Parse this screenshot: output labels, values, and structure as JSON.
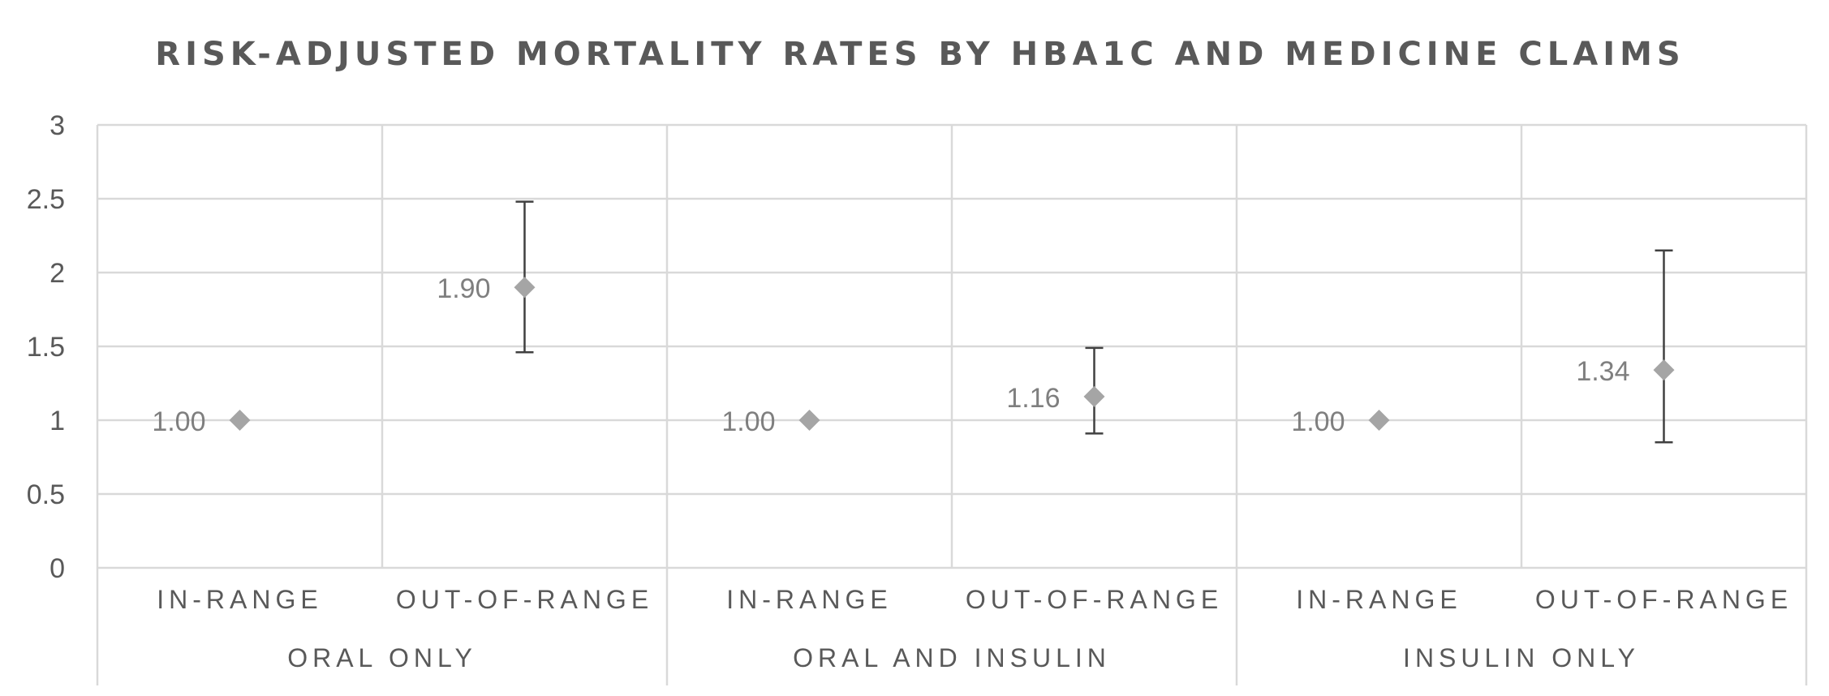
{
  "chart_data": {
    "type": "scatter",
    "title": "RISK-ADJUSTED MORTALITY RATES BY HBA1C AND MEDICINE CLAIMS",
    "ylim": [
      0,
      3
    ],
    "yticks": [
      "0",
      "0.5",
      "1",
      "1.5",
      "2",
      "2.5",
      "3"
    ],
    "ytick_values": [
      0,
      0.5,
      1,
      1.5,
      2,
      2.5,
      3
    ],
    "grid": true,
    "groups": [
      "ORAL ONLY",
      "ORAL AND INSULIN",
      "INSULIN ONLY"
    ],
    "categories": [
      "IN-RANGE",
      "OUT-OF-RANGE",
      "IN-RANGE",
      "OUT-OF-RANGE",
      "IN-RANGE",
      "OUT-OF-RANGE"
    ],
    "values": [
      1.0,
      1.9,
      1.0,
      1.16,
      1.0,
      1.34
    ],
    "value_labels": [
      "1.00",
      "1.90",
      "1.00",
      "1.16",
      "1.00",
      "1.34"
    ],
    "error_low": [
      null,
      1.46,
      null,
      0.91,
      null,
      0.85
    ],
    "error_high": [
      null,
      2.48,
      null,
      1.49,
      null,
      2.15
    ],
    "marker": "diamond",
    "marker_color": "#a5a5a5",
    "errorbar_color": "#404040",
    "grid_color": "#d9d9d9"
  }
}
